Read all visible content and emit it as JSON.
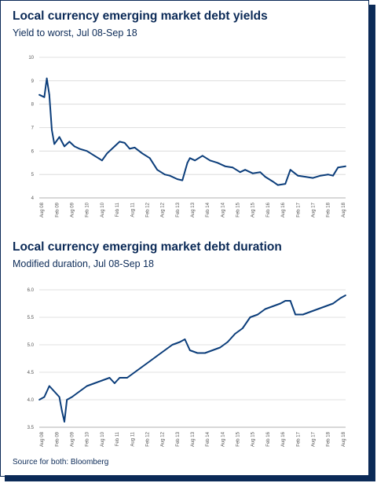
{
  "charts": [
    {
      "title": "Local currency emerging market debt yields",
      "subtitle": "Yield to worst, Jul 08-Sep 18"
    },
    {
      "title": "Local currency emerging market debt duration",
      "subtitle": "Modified duration, Jul 08-Sep 18"
    }
  ],
  "source": "Source for both: Bloomberg",
  "chart_data": [
    {
      "type": "line",
      "title": "Local currency emerging market debt yields",
      "subtitle": "Yield to worst, Jul 08-Sep 18",
      "xlabel": "",
      "ylabel": "",
      "ylim": [
        4,
        10
      ],
      "yticks": [
        "10",
        "9",
        "8",
        "7",
        "6",
        "5",
        "4"
      ],
      "xticks": [
        "Aug 08",
        "Feb 09",
        "Aug 09",
        "Feb 10",
        "Aug 10",
        "Feb 11",
        "Aug 11",
        "Feb 12",
        "Aug 12",
        "Feb 13",
        "Aug 13",
        "Feb 14",
        "Aug 14",
        "Feb 15",
        "Aug 15",
        "Feb 16",
        "Aug 16",
        "Feb 17",
        "Aug 17",
        "Feb 18",
        "Aug 18"
      ],
      "x_range": [
        "2008-07",
        "2018-09"
      ],
      "grid": true,
      "color": "#0b3d7a",
      "series": [
        {
          "x": [
            "2008-07",
            "2008-09",
            "2008-10",
            "2008-11",
            "2008-12",
            "2009-01",
            "2009-03",
            "2009-05",
            "2009-07",
            "2009-09",
            "2009-11",
            "2010-02",
            "2010-05",
            "2010-08",
            "2010-10",
            "2011-01",
            "2011-03",
            "2011-05",
            "2011-07",
            "2011-09",
            "2011-12",
            "2012-03",
            "2012-06",
            "2012-09",
            "2012-11",
            "2013-02",
            "2013-04",
            "2013-06",
            "2013-07",
            "2013-09",
            "2013-12",
            "2014-03",
            "2014-06",
            "2014-09",
            "2014-12",
            "2015-03",
            "2015-05",
            "2015-08",
            "2015-11",
            "2016-01",
            "2016-04",
            "2016-06",
            "2016-09",
            "2016-11",
            "2017-02",
            "2017-05",
            "2017-08",
            "2017-11",
            "2018-02",
            "2018-04",
            "2018-06",
            "2018-09"
          ],
          "values": [
            8.4,
            8.3,
            9.1,
            8.4,
            6.9,
            6.3,
            6.6,
            6.2,
            6.4,
            6.2,
            6.1,
            6.0,
            5.8,
            5.6,
            5.9,
            6.2,
            6.4,
            6.35,
            6.1,
            6.15,
            5.9,
            5.7,
            5.2,
            5.0,
            4.95,
            4.8,
            4.75,
            5.5,
            5.7,
            5.6,
            5.8,
            5.6,
            5.5,
            5.35,
            5.3,
            5.1,
            5.2,
            5.05,
            5.1,
            4.9,
            4.7,
            4.55,
            4.6,
            5.2,
            4.95,
            4.9,
            4.85,
            4.95,
            5.0,
            4.95,
            5.3,
            5.35
          ]
        }
      ]
    },
    {
      "type": "line",
      "title": "Local currency emerging market debt duration",
      "subtitle": "Modified duration, Jul 08-Sep 18",
      "xlabel": "",
      "ylabel": "",
      "ylim": [
        3.5,
        6.0
      ],
      "yticks": [
        "6.0",
        "5.5",
        "5.0",
        "4.5",
        "4.0",
        "3.5"
      ],
      "xticks": [
        "Aug 08",
        "Feb 09",
        "Aug 09",
        "Feb 10",
        "Aug 10",
        "Feb 11",
        "Aug 11",
        "Feb 12",
        "Aug 12",
        "Feb 13",
        "Aug 13",
        "Feb 14",
        "Aug 14",
        "Feb 15",
        "Aug 15",
        "Feb 16",
        "Aug 16",
        "Feb 17",
        "Aug 17",
        "Feb 18",
        "Aug 18"
      ],
      "x_range": [
        "2008-07",
        "2018-09"
      ],
      "grid": true,
      "color": "#0b3d7a",
      "series": [
        {
          "x": [
            "2008-07",
            "2008-09",
            "2008-11",
            "2009-01",
            "2009-03",
            "2009-04",
            "2009-05",
            "2009-06",
            "2009-08",
            "2009-11",
            "2010-02",
            "2010-05",
            "2010-08",
            "2010-11",
            "2011-01",
            "2011-03",
            "2011-06",
            "2011-09",
            "2011-12",
            "2012-03",
            "2012-06",
            "2012-09",
            "2012-12",
            "2013-03",
            "2013-05",
            "2013-07",
            "2013-10",
            "2014-01",
            "2014-04",
            "2014-07",
            "2014-10",
            "2015-01",
            "2015-04",
            "2015-07",
            "2015-10",
            "2016-01",
            "2016-04",
            "2016-07",
            "2016-09",
            "2016-11",
            "2017-01",
            "2017-04",
            "2017-07",
            "2017-10",
            "2018-01",
            "2018-04",
            "2018-07",
            "2018-09"
          ],
          "values": [
            4.0,
            4.05,
            4.25,
            4.15,
            4.05,
            3.8,
            3.6,
            4.0,
            4.05,
            4.15,
            4.25,
            4.3,
            4.35,
            4.4,
            4.3,
            4.4,
            4.4,
            4.5,
            4.6,
            4.7,
            4.8,
            4.9,
            5.0,
            5.05,
            5.1,
            4.9,
            4.85,
            4.85,
            4.9,
            4.95,
            5.05,
            5.2,
            5.3,
            5.5,
            5.55,
            5.65,
            5.7,
            5.75,
            5.8,
            5.8,
            5.55,
            5.55,
            5.6,
            5.65,
            5.7,
            5.75,
            5.85,
            5.9
          ]
        }
      ]
    }
  ]
}
